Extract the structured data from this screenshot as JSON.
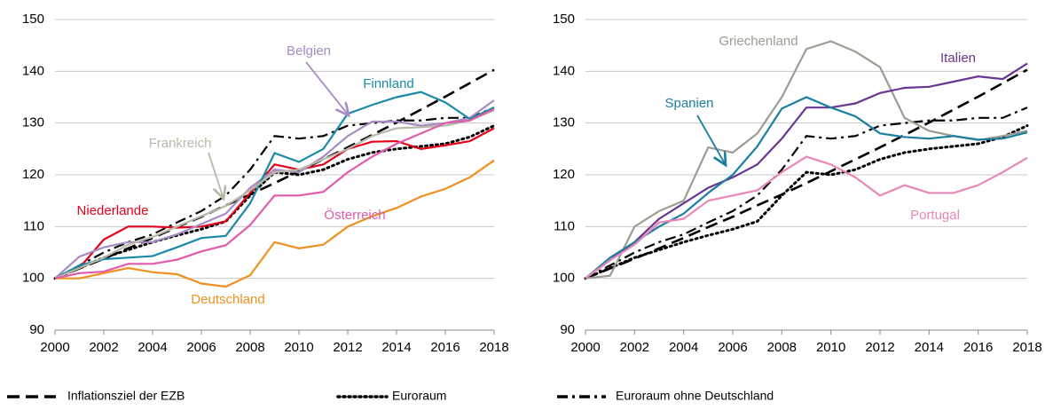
{
  "chart_data": [
    {
      "type": "line",
      "x": [
        2000,
        2001,
        2002,
        2003,
        2004,
        2005,
        2006,
        2007,
        2008,
        2009,
        2010,
        2011,
        2012,
        2013,
        2014,
        2015,
        2016,
        2017,
        2018
      ],
      "xlim": [
        2000,
        2018
      ],
      "xticks": [
        2000,
        2002,
        2004,
        2006,
        2008,
        2010,
        2012,
        2014,
        2016,
        2018
      ],
      "ylim": [
        90,
        150
      ],
      "yticks": [
        90,
        100,
        110,
        120,
        130,
        140,
        150
      ],
      "grid": true,
      "series": [
        {
          "name": "Inflationsziel der EZB",
          "color": "#000000",
          "dash": "dashed",
          "values": [
            100,
            101.9,
            103.8,
            105.8,
            107.8,
            109.9,
            111.9,
            114.1,
            116.2,
            118.4,
            120.7,
            123.0,
            125.3,
            127.7,
            130.1,
            132.6,
            135.1,
            137.7,
            140.3
          ]
        },
        {
          "name": "Euroraum",
          "color": "#000000",
          "dash": "dotted",
          "values": [
            100,
            102,
            104,
            105.5,
            107,
            108.3,
            109.5,
            111,
            116,
            120.5,
            120,
            121,
            123,
            124.3,
            125,
            125.5,
            126,
            127.3,
            129.5
          ]
        },
        {
          "name": "Euroraum ohne Deutschland",
          "color": "#000000",
          "dash": "dashdot",
          "values": [
            100,
            102.5,
            105,
            107,
            108.5,
            110.8,
            113,
            116,
            121,
            127.5,
            127,
            127.5,
            129.5,
            130,
            130.5,
            130.5,
            131,
            131,
            133
          ]
        },
        {
          "name": "Deutschland",
          "color": "#f0901e",
          "dash": "solid",
          "values": [
            100,
            100,
            101,
            102,
            101.2,
            100.8,
            99,
            98.4,
            100.6,
            107,
            105.8,
            106.5,
            110,
            112,
            113.6,
            115.8,
            117.3,
            119.5,
            122.8
          ]
        },
        {
          "name": "Niederlande",
          "color": "#e3001b",
          "dash": "solid",
          "values": [
            100,
            102,
            107.5,
            110,
            110,
            109.8,
            110,
            111,
            116.5,
            122,
            121,
            122,
            125,
            126.4,
            126.5,
            125,
            125.7,
            126.5,
            129
          ]
        },
        {
          "name": "Belgien",
          "color": "#a78bc4",
          "dash": "solid",
          "values": [
            100,
            104.2,
            106,
            107,
            107,
            108.5,
            110.5,
            112.5,
            117.5,
            121,
            120.5,
            123.5,
            127.5,
            130.3,
            130.3,
            129.5,
            130,
            131,
            134.4
          ]
        },
        {
          "name": "Finnland",
          "color": "#1a8aa8",
          "dash": "solid",
          "values": [
            100,
            102.5,
            103.7,
            104,
            104.3,
            106,
            107.8,
            108.2,
            114.5,
            124.2,
            122.5,
            125,
            131.8,
            133.5,
            135,
            136,
            134,
            130.8,
            133
          ]
        },
        {
          "name": "Frankreich",
          "color": "#b8b8a8",
          "dash": "solid",
          "values": [
            100,
            102,
            104,
            106.5,
            108,
            110,
            112,
            114,
            117,
            120.5,
            121,
            123,
            125,
            127.5,
            129,
            129.2,
            129.5,
            130.5,
            132.5
          ]
        },
        {
          "name": "Österreich",
          "color": "#e05bab",
          "dash": "solid",
          "values": [
            100,
            101,
            101.3,
            102.8,
            102.8,
            103.6,
            105.2,
            106.4,
            110.3,
            116,
            116,
            116.7,
            120.5,
            123.5,
            126,
            128,
            130,
            130.5,
            132.7
          ]
        }
      ]
    },
    {
      "type": "line",
      "x": [
        2000,
        2001,
        2002,
        2003,
        2004,
        2005,
        2006,
        2007,
        2008,
        2009,
        2010,
        2011,
        2012,
        2013,
        2014,
        2015,
        2016,
        2017,
        2018
      ],
      "xlim": [
        2000,
        2018
      ],
      "xticks": [
        2000,
        2002,
        2004,
        2006,
        2008,
        2010,
        2012,
        2014,
        2016,
        2018
      ],
      "ylim": [
        90,
        150
      ],
      "yticks": [
        90,
        100,
        110,
        120,
        130,
        140,
        150
      ],
      "grid": true,
      "series": [
        {
          "color": "#000000",
          "dash": "dashed",
          "values": [
            100,
            101.9,
            103.8,
            105.8,
            107.8,
            109.9,
            111.9,
            114.1,
            116.2,
            118.4,
            120.7,
            123.0,
            125.3,
            127.7,
            130.1,
            132.6,
            135.1,
            137.7,
            140.3
          ]
        },
        {
          "color": "#000000",
          "dash": "dotted",
          "values": [
            100,
            102,
            104,
            105.5,
            107,
            108.3,
            109.5,
            111,
            116,
            120.5,
            120,
            121,
            123,
            124.3,
            125,
            125.5,
            126,
            127.3,
            129.5
          ]
        },
        {
          "color": "#000000",
          "dash": "dashdot",
          "values": [
            100,
            102.5,
            105,
            107,
            108.5,
            110.8,
            113,
            116,
            121,
            127.5,
            127,
            127.5,
            129.5,
            130,
            130.5,
            130.5,
            131,
            131,
            133
          ]
        },
        {
          "name": "Griechenland",
          "color": "#9c9c90",
          "dash": "solid",
          "values": [
            100,
            100.5,
            110,
            113,
            115,
            125.3,
            124.3,
            128,
            135,
            144.3,
            145.8,
            143.8,
            140.8,
            131,
            128.5,
            127.5,
            126.7,
            127.5,
            128.5
          ]
        },
        {
          "name": "Italien",
          "color": "#6a3592",
          "dash": "solid",
          "values": [
            100,
            103.5,
            107,
            111.5,
            114.5,
            117.5,
            119.5,
            122,
            127,
            133,
            133,
            133.8,
            135.8,
            136.8,
            137,
            138,
            139,
            138.5,
            141.5
          ]
        },
        {
          "name": "Spanien",
          "color": "#1a7fa0",
          "dash": "solid",
          "values": [
            100,
            104,
            107,
            110,
            112.5,
            116.5,
            120,
            125.5,
            132.8,
            135,
            133,
            131.3,
            128,
            127.3,
            127,
            127.5,
            126.8,
            127,
            128.2
          ]
        },
        {
          "name": "Portugal",
          "color": "#e887b7",
          "dash": "solid",
          "values": [
            100,
            103.5,
            106.5,
            110.8,
            111.5,
            115,
            116,
            117,
            120.5,
            123.5,
            122,
            119.5,
            116,
            118,
            116.5,
            116.5,
            118,
            120.5,
            123.3
          ]
        }
      ]
    }
  ]
}
